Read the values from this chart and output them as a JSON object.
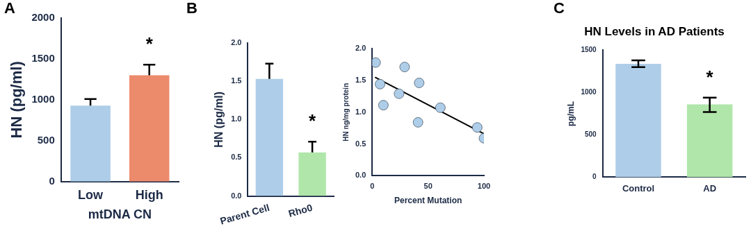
{
  "chart_data": [
    {
      "type": "bar",
      "categories": [
        "Low",
        "High"
      ],
      "values": [
        930,
        1300
      ],
      "colors": [
        "#aecde8",
        "#ec8a6c"
      ],
      "errors": [
        [
          930,
          1010
        ],
        [
          1300,
          1430
        ]
      ],
      "xlabel": "mtDNA CN",
      "ylabel": "HN (pg/ml)",
      "ylim": [
        0,
        2000
      ],
      "yticks": [
        0,
        500,
        1000,
        1500,
        2000
      ],
      "annotations": [
        "A",
        "*"
      ]
    },
    {
      "type": "bar",
      "categories": [
        "Parent Cell",
        "Rho0"
      ],
      "values": [
        1.53,
        0.57
      ],
      "colors": [
        "#aecde8",
        "#b0e6aa"
      ],
      "errors": [
        [
          1.53,
          1.73
        ],
        [
          0.57,
          0.71
        ]
      ],
      "ylabel": "HN (pg/ml)",
      "ylim": [
        0,
        2
      ],
      "yticks": [
        {
          "value": 0,
          "label": "0.0"
        },
        0.5,
        {
          "value": 1,
          "label": "1.0"
        },
        1.5,
        {
          "value": 2,
          "label": "2.0"
        }
      ],
      "annotations": [
        "B",
        "*"
      ]
    },
    {
      "type": "scatter",
      "xlabel": "Percent Mutation",
      "ylabel": "HN ng/mg protein",
      "xlim": [
        0,
        100
      ],
      "xticks": [
        0,
        50,
        100
      ],
      "ylim": [
        0,
        2
      ],
      "yticks": [
        {
          "value": 0,
          "label": "0.0"
        },
        0.5,
        {
          "value": 1,
          "label": "1.0"
        },
        1.5,
        {
          "value": 2,
          "label": "2.0"
        }
      ],
      "series": [
        {
          "color": "#aecde8",
          "marker": "circle",
          "x": [
            3,
            7,
            10,
            24,
            29,
            41,
            42,
            61,
            94,
            100
          ],
          "values": [
            1.78,
            1.44,
            1.11,
            1.29,
            1.71,
            0.84,
            1.46,
            1.07,
            0.76,
            0.59
          ]
        },
        {
          "type": "line",
          "marker": "none",
          "color": "#000000",
          "x": [
            2.5,
            100
          ],
          "values": [
            1.55,
            0.66
          ]
        }
      ]
    },
    {
      "type": "bar",
      "title": "HN Levels in AD Patients",
      "categories": [
        "Control",
        "AD"
      ],
      "values": [
        1340,
        860
      ],
      "colors": [
        "#aecde8",
        "#b0e6aa"
      ],
      "errors": [
        [
          1300,
          1380
        ],
        [
          770,
          940
        ]
      ],
      "ylabel": "pg/mL",
      "ylim": [
        0,
        1500
      ],
      "yticks": [
        0,
        500,
        1000,
        1500
      ],
      "annotations": [
        "C",
        "*"
      ]
    }
  ]
}
